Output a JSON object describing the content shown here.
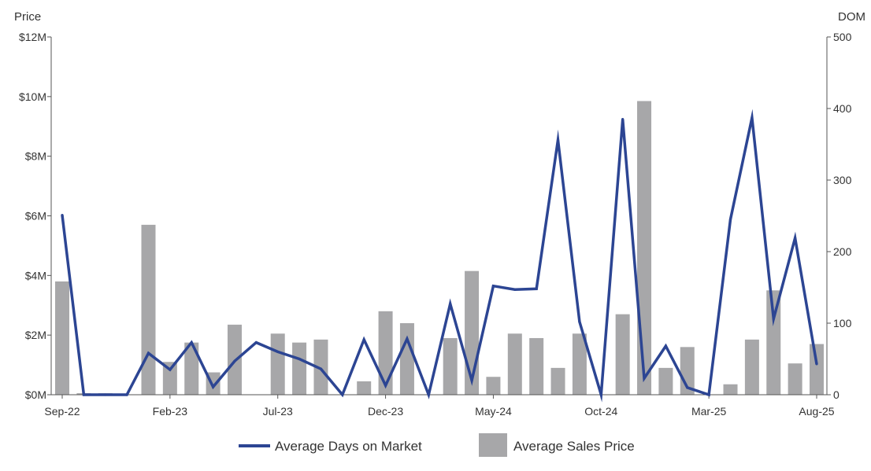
{
  "chart_data": {
    "type": "bar+line",
    "title": "",
    "left_axis": {
      "title": "Price",
      "range": [
        0,
        12
      ],
      "ticks": [
        0,
        2,
        4,
        6,
        8,
        10,
        12
      ],
      "tick_labels": [
        "$0M",
        "$2M",
        "$4M",
        "$6M",
        "$8M",
        "$10M",
        "$12M"
      ]
    },
    "right_axis": {
      "title": "DOM",
      "range": [
        0,
        500
      ],
      "ticks": [
        0,
        100,
        200,
        300,
        400,
        500
      ],
      "tick_labels": [
        "0",
        "100",
        "200",
        "300",
        "400",
        "500"
      ]
    },
    "categories": [
      "Sep-22",
      "Oct-22",
      "Nov-22",
      "Dec-22",
      "Jan-23",
      "Feb-23",
      "Mar-23",
      "Apr-23",
      "May-23",
      "Jun-23",
      "Jul-23",
      "Aug-23",
      "Sep-23",
      "Oct-23",
      "Nov-23",
      "Dec-23",
      "Jan-24",
      "Feb-24",
      "Mar-24",
      "Apr-24",
      "May-24",
      "Jun-24",
      "Jul-24",
      "Aug-24",
      "Sep-24",
      "Oct-24",
      "Nov-24",
      "Dec-24",
      "Jan-25",
      "Feb-25",
      "Mar-25",
      "Apr-25",
      "May-25",
      "Jun-25",
      "Jul-25",
      "Aug-25"
    ],
    "x_tick_labels": [
      {
        "index": 0,
        "label": "Sep-22"
      },
      {
        "index": 5,
        "label": "Feb-23"
      },
      {
        "index": 10,
        "label": "Jul-23"
      },
      {
        "index": 15,
        "label": "Dec-23"
      },
      {
        "index": 20,
        "label": "May-24"
      },
      {
        "index": 25,
        "label": "Oct-24"
      },
      {
        "index": 30,
        "label": "Mar-25"
      },
      {
        "index": 35,
        "label": "Aug-25"
      }
    ],
    "series": [
      {
        "name": "Average Sales Price",
        "type": "bar",
        "axis": "left",
        "color": "#a7a7a9",
        "values": [
          3.8,
          0.05,
          0.05,
          0,
          5.7,
          1.1,
          1.75,
          0.75,
          2.35,
          0,
          2.05,
          1.75,
          1.85,
          0,
          0.45,
          2.8,
          2.4,
          0,
          1.9,
          4.15,
          0.6,
          2.05,
          1.9,
          0.9,
          2.05,
          0,
          2.7,
          9.85,
          0.9,
          1.6,
          0,
          0.35,
          1.85,
          3.5,
          1.05,
          1.7
        ]
      },
      {
        "name": "Average Days on Market",
        "type": "line",
        "axis": "right",
        "color": "#2c4593",
        "values": [
          251,
          0,
          0,
          0,
          58,
          35,
          73,
          11,
          47,
          73,
          60,
          50,
          36,
          0,
          77,
          13,
          78,
          0,
          127,
          20,
          152,
          147,
          148,
          356,
          102,
          0,
          385,
          23,
          68,
          10,
          0,
          245,
          387,
          106,
          219,
          43
        ]
      }
    ],
    "legend": {
      "placement": "bottom-center",
      "items": [
        "Average Days on Market",
        "Average Sales Price"
      ]
    },
    "grid": false
  }
}
